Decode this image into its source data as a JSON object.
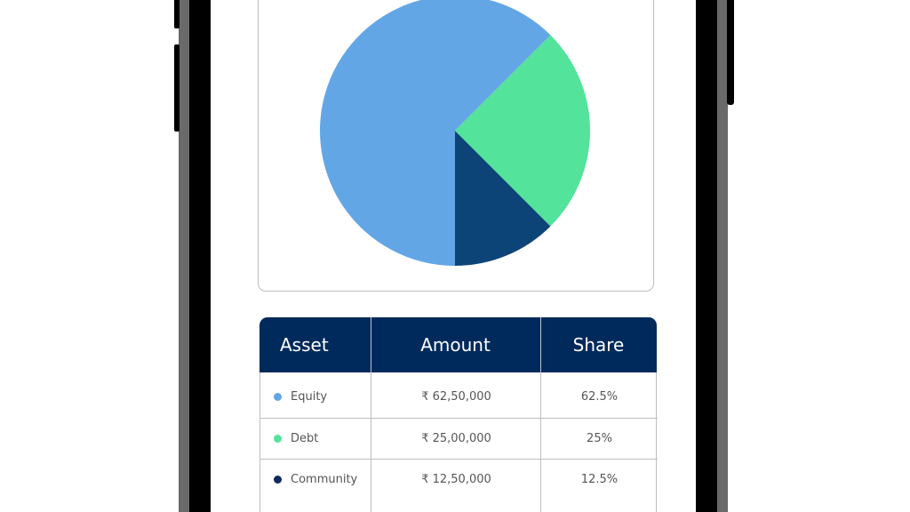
{
  "chart_data": {
    "type": "pie",
    "title": "",
    "slices": [
      {
        "label": "Equity",
        "value": 62.5,
        "color": "#63a6e6"
      },
      {
        "label": "Debt",
        "value": 25,
        "color": "#53e39b"
      },
      {
        "label": "Community",
        "value": 12.5,
        "color": "#0d4478"
      }
    ],
    "start_angle_deg": 180,
    "direction": "counterclockwise-from-bottom"
  },
  "table": {
    "headers": [
      "Asset",
      "Amount",
      "Share"
    ],
    "header_color": "#002a5c",
    "rows": [
      {
        "asset": "Equity",
        "amount": "₹ 62,50,000",
        "share": "62.5%",
        "dot_color": "#63a6e6"
      },
      {
        "asset": "Debt",
        "amount": "₹ 25,00,000",
        "share": "25%",
        "dot_color": "#53e39b"
      },
      {
        "asset": "Community",
        "amount": "₹ 12,50,000",
        "share": "12.5%",
        "dot_color": "#0d2a5c"
      }
    ]
  }
}
